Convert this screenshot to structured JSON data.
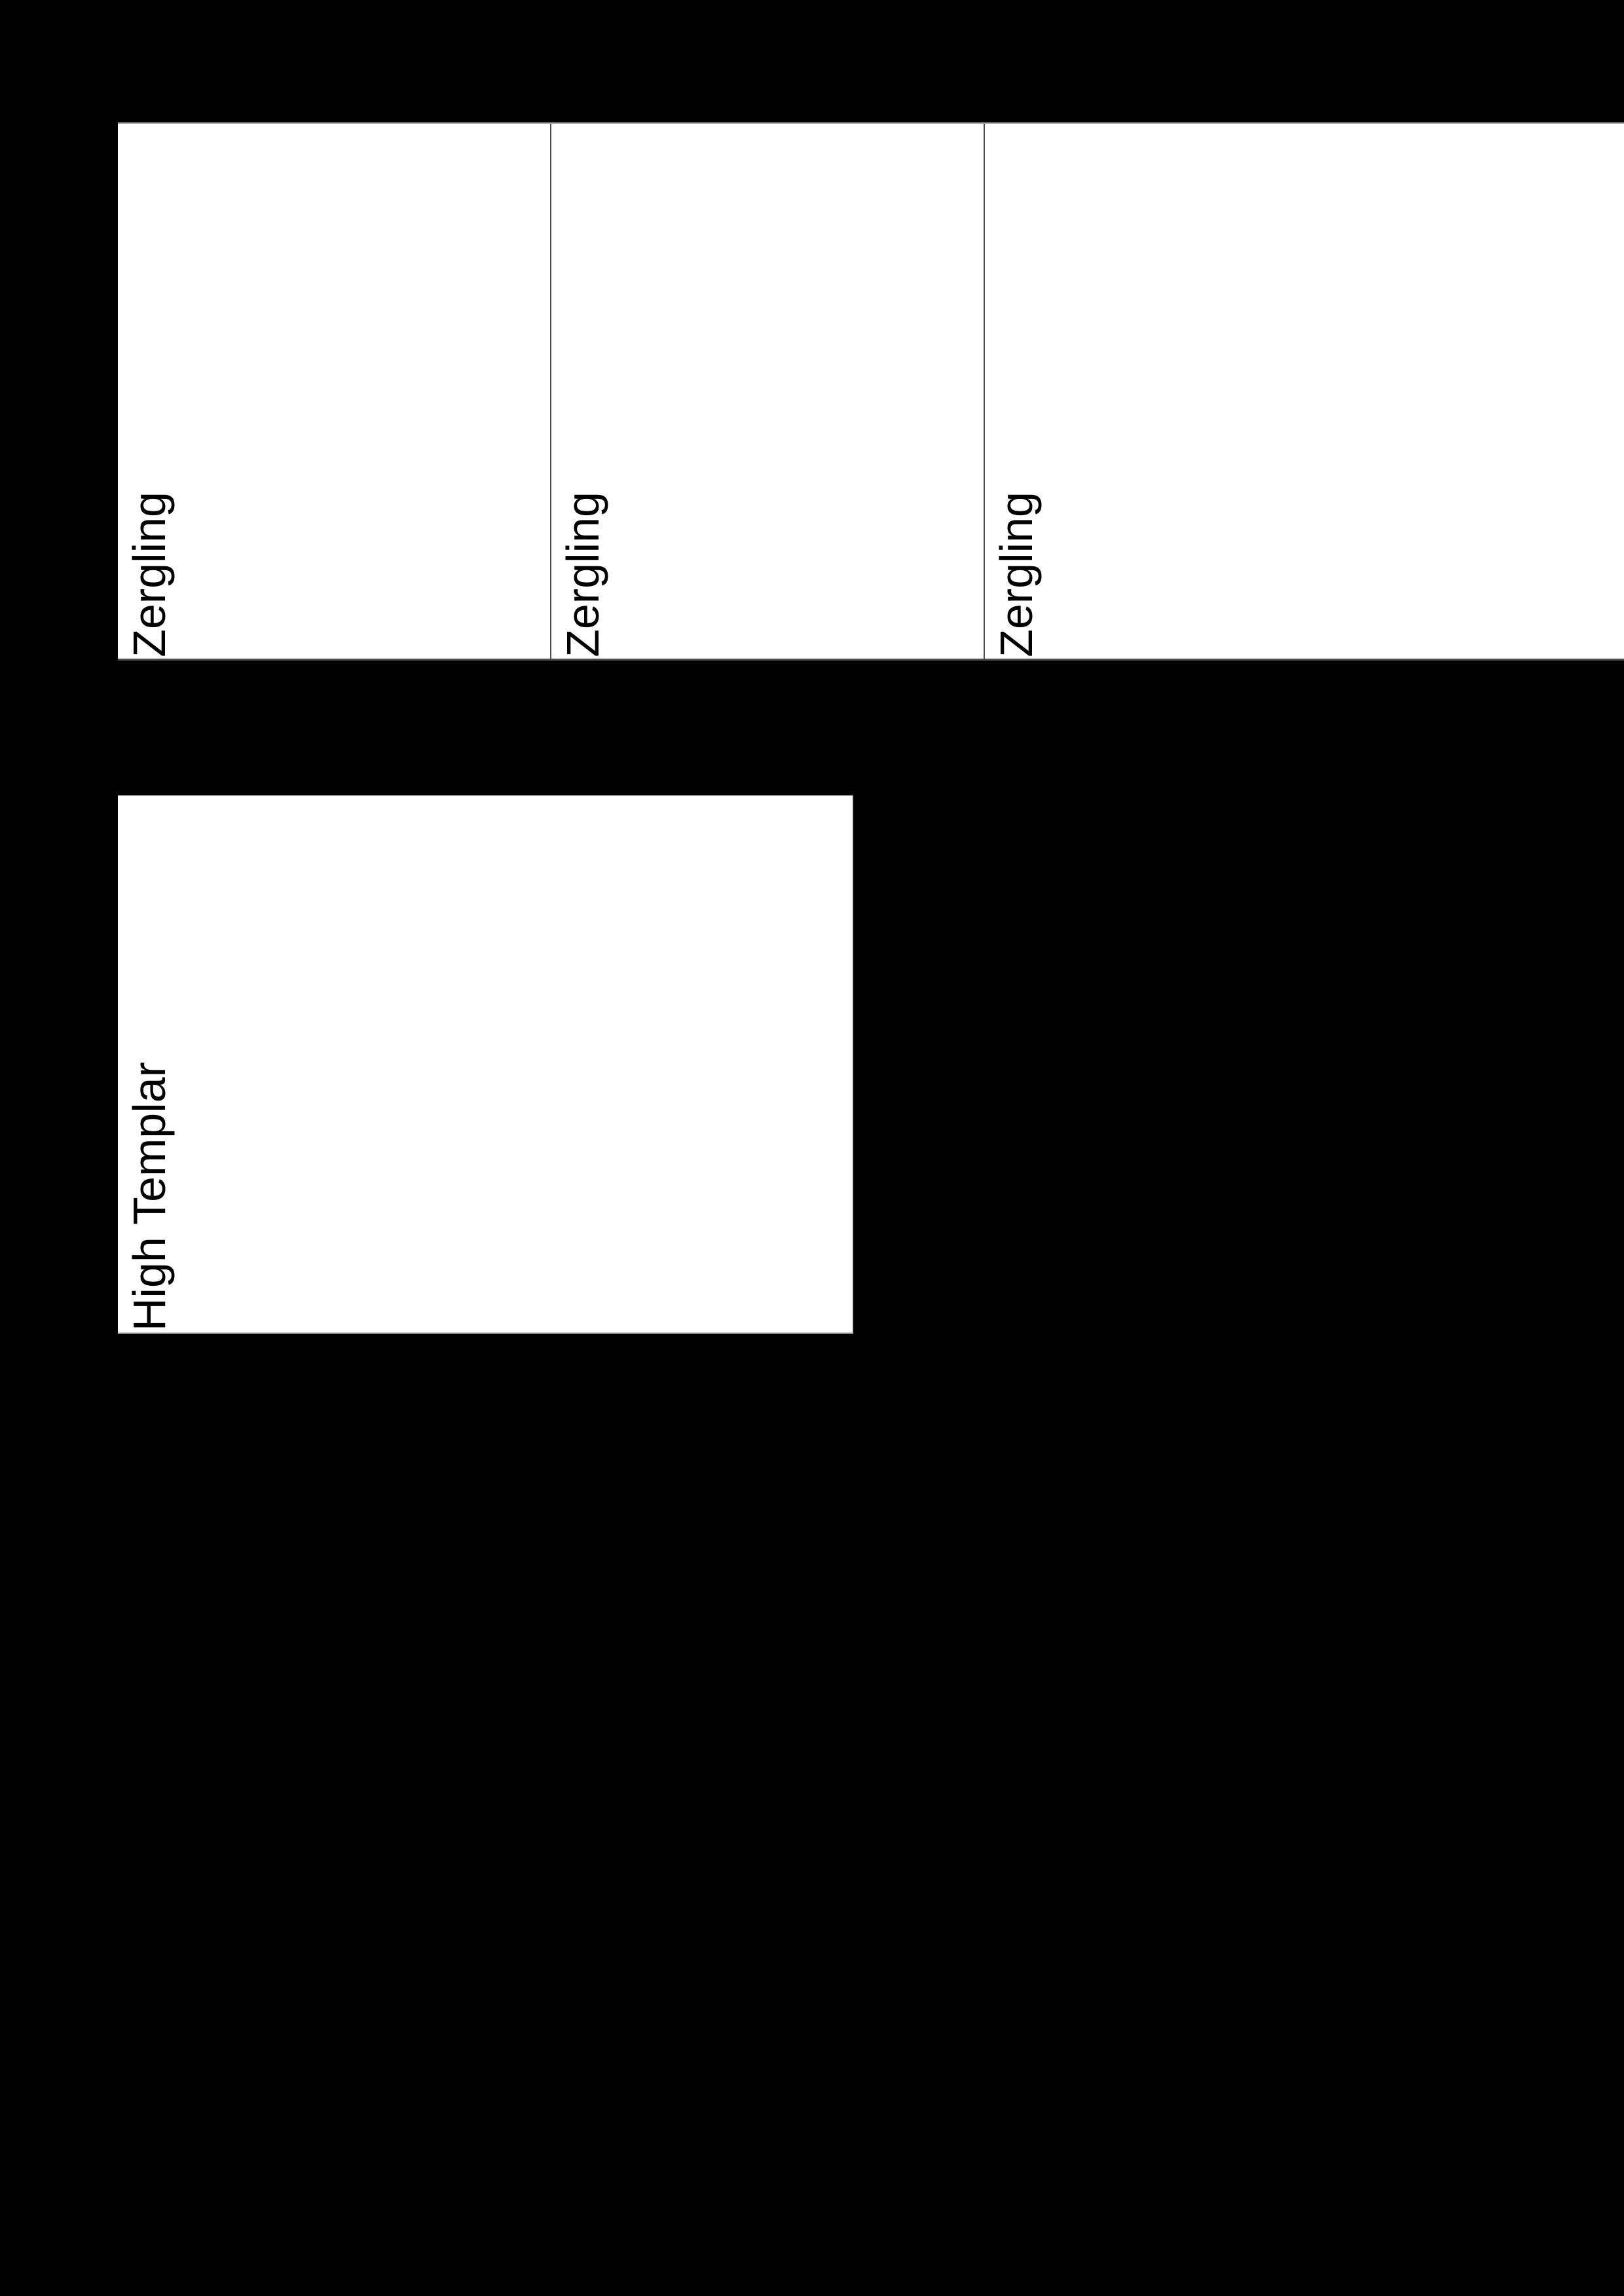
{
  "document": {
    "background_color": "#000000",
    "card_background": "#ffffff",
    "text_color": "#000000",
    "border_colors": {
      "band_top": "#a6a6a6",
      "band_bottom": "#4d4d4d",
      "cell_divider": "#4d4d4d",
      "box_edge": "#cccccc"
    },
    "band_cards": [
      {
        "label": "Zergling"
      },
      {
        "label": "Zergling"
      },
      {
        "label": "Zergling"
      }
    ],
    "single_card": {
      "label": "High Templar"
    }
  }
}
